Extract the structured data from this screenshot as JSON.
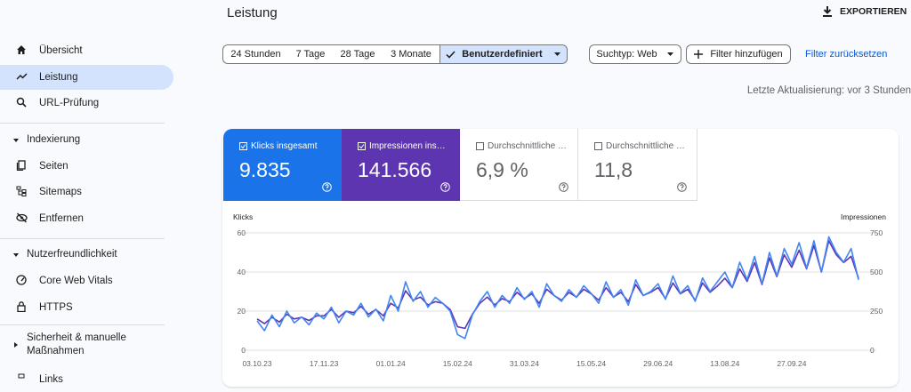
{
  "sidebar": {
    "nav": [
      "Übersicht",
      "Leistung",
      "URL-Prüfung"
    ],
    "sections": [
      {
        "title": "Indexierung",
        "items": [
          "Seiten",
          "Sitemaps",
          "Entfernen"
        ]
      },
      {
        "title": "Nutzerfreundlichkeit",
        "items": [
          "Core Web Vitals",
          "HTTPS"
        ]
      },
      {
        "title_lines": [
          "Sicherheit & manuelle",
          "Maßnahmen"
        ]
      }
    ],
    "footer_item": "Links"
  },
  "header": {
    "title": "Leistung",
    "export": "EXPORTIEREN"
  },
  "toolbar": {
    "ranges": [
      "24 Stunden",
      "7 Tage",
      "28 Tage",
      "3 Monate",
      "Benutzerdefiniert"
    ],
    "search_type": "Suchtyp: Web",
    "add_filter": "Filter hinzufügen",
    "reset": "Filter zurücksetzen",
    "updated": "Letzte Aktualisierung: vor 3 Stunden"
  },
  "kpis": [
    {
      "label": "Klicks insgesamt",
      "value": "9.835"
    },
    {
      "label": "Impressionen ins…",
      "value": "141.566"
    },
    {
      "label": "Durchschnittliche …",
      "value": "6,9 %"
    },
    {
      "label": "Durchschnittliche …",
      "value": "11,8"
    }
  ],
  "chart_data": {
    "type": "line",
    "y_label": "Klicks",
    "y2_label": "Impressionen",
    "categories": [
      "03.10.23",
      null,
      null,
      null,
      null,
      null,
      null,
      null,
      null,
      "17.11.23",
      null,
      null,
      null,
      null,
      null,
      null,
      null,
      null,
      "01.01.24",
      null,
      null,
      null,
      null,
      null,
      null,
      null,
      null,
      "15.02.24",
      null,
      null,
      null,
      null,
      null,
      null,
      null,
      null,
      "31.03.24",
      null,
      null,
      null,
      null,
      null,
      null,
      null,
      null,
      "15.05.24",
      null,
      null,
      null,
      null,
      null,
      null,
      null,
      null,
      "29.06.24",
      null,
      null,
      null,
      null,
      null,
      null,
      null,
      null,
      "13.08.24",
      null,
      null,
      null,
      null,
      null,
      null,
      null,
      null,
      "27.09.24",
      null,
      null,
      null,
      null,
      null,
      null,
      null,
      null,
      null
    ],
    "series": [
      {
        "name": "Klicks",
        "color": "#4285f4",
        "values": [
          15,
          10,
          18,
          12,
          20,
          14,
          17,
          13,
          19,
          16,
          22,
          14,
          20,
          18,
          24,
          17,
          21,
          15,
          28,
          20,
          35,
          25,
          30,
          22,
          27,
          24,
          20,
          8,
          6,
          18,
          25,
          30,
          22,
          28,
          24,
          32,
          26,
          30,
          22,
          34,
          28,
          25,
          31,
          27,
          33,
          29,
          24,
          35,
          27,
          31,
          23,
          36,
          28,
          30,
          34,
          26,
          38,
          29,
          33,
          25,
          37,
          30,
          35,
          40,
          32,
          45,
          36,
          48,
          34,
          50,
          38,
          52,
          44,
          55,
          42,
          56,
          40,
          58,
          50,
          45,
          52,
          36
        ]
      },
      {
        "name": "Impressionen",
        "color": "#5e35b1",
        "axis": "y2",
        "values": [
          200,
          170,
          210,
          180,
          230,
          200,
          210,
          190,
          220,
          220,
          260,
          210,
          250,
          240,
          280,
          230,
          260,
          220,
          300,
          270,
          380,
          320,
          340,
          290,
          310,
          300,
          260,
          150,
          140,
          230,
          300,
          340,
          290,
          330,
          310,
          370,
          330,
          360,
          300,
          390,
          350,
          320,
          370,
          340,
          390,
          360,
          320,
          400,
          340,
          370,
          310,
          420,
          350,
          370,
          400,
          330,
          430,
          360,
          390,
          320,
          430,
          370,
          410,
          460,
          400,
          520,
          440,
          560,
          420,
          590,
          470,
          610,
          530,
          640,
          520,
          670,
          500,
          700,
          610,
          560,
          600,
          460
        ]
      }
    ],
    "ylim": [
      0,
      60
    ],
    "yticks": [
      0,
      20,
      40,
      60
    ],
    "y2lim": [
      0,
      750
    ],
    "y2ticks": [
      0,
      250,
      500,
      750
    ],
    "grid": true
  }
}
